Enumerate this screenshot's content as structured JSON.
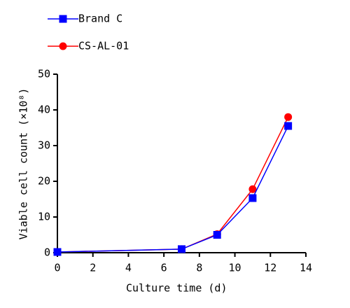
{
  "chart_data": {
    "type": "line",
    "x_label": "Culture time (d)",
    "y_label": "Viable cell count (×10⁸)",
    "x": [
      0,
      7,
      9,
      11,
      13
    ],
    "series": [
      {
        "name": "Brand C",
        "color": "#0000ff",
        "marker": "square",
        "values": [
          0.2,
          1,
          5,
          15.3,
          35.5
        ]
      },
      {
        "name": "CS-AL-01",
        "color": "#ff0000",
        "marker": "circle",
        "values": [
          0.2,
          1,
          5.2,
          17.8,
          38
        ]
      }
    ],
    "xlim": [
      0,
      14
    ],
    "xticks": [
      0,
      2,
      4,
      6,
      8,
      10,
      12,
      14
    ],
    "ylim": [
      0,
      50
    ],
    "yticks": [
      0,
      10,
      20,
      30,
      40,
      50
    ],
    "grid": false
  }
}
